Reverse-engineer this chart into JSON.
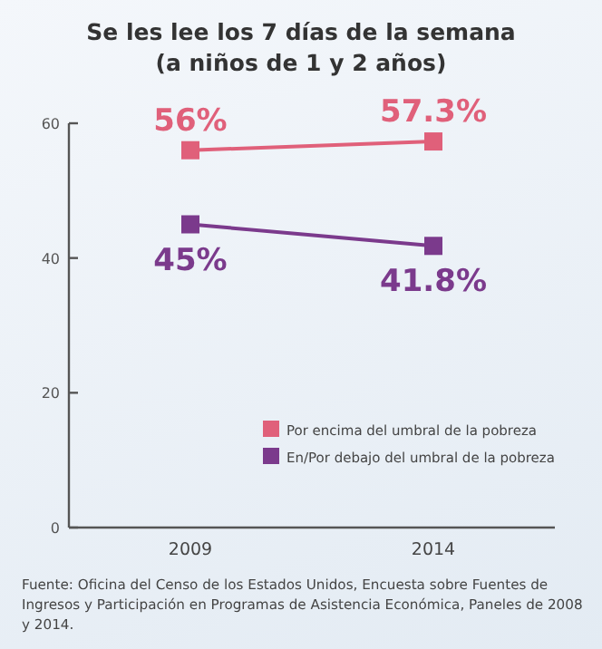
{
  "chart_data": {
    "type": "line",
    "title": "Se les lee los 7 días de la semana",
    "subtitle": "(a niños de 1 y 2 años)",
    "categories": [
      "2009",
      "2014"
    ],
    "series": [
      {
        "name": "Por encima del umbral de la pobreza",
        "color": "#e0607a",
        "values": [
          56,
          57.3
        ],
        "value_labels": [
          "56%",
          "57.3%"
        ]
      },
      {
        "name": "En/Por debajo del umbral de la pobreza",
        "color": "#7b3a8c",
        "values": [
          45,
          41.8
        ],
        "value_labels": [
          "45%",
          "41.8%"
        ]
      }
    ],
    "ylim": [
      0,
      60
    ],
    "yticks": [
      0,
      20,
      40,
      60
    ],
    "grid": false,
    "legend": "bottom right",
    "marker": "square",
    "line_style": "solid",
    "annotations": [
      "Fuente: Oficina del Censo de los Estados Unidos, Encuesta sobre Fuentes de Ingresos y Participación en Programas de Asistencia Económica, Paneles de 2008 y 2014."
    ]
  }
}
